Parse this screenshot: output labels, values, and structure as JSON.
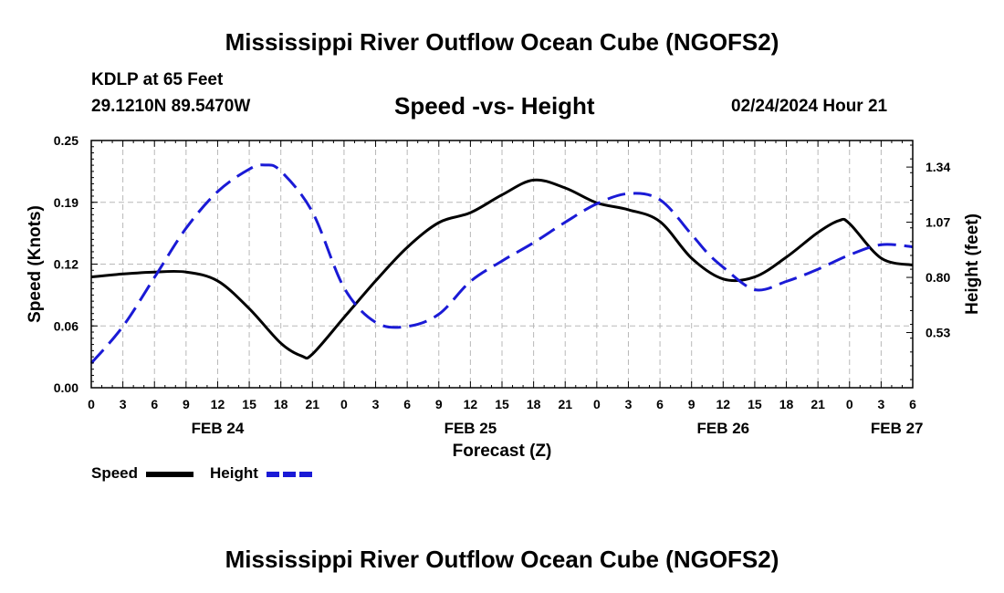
{
  "header": {
    "title": "Mississippi River Outflow Ocean Cube (NGOFS2)",
    "station": "KDLP at 65 Feet",
    "coords": "29.1210N  89.5470W",
    "subtitle": "Speed -vs- Height",
    "datetime": "02/24/2024 Hour 21"
  },
  "footer": {
    "title": "Mississippi River Outflow Ocean Cube (NGOFS2)"
  },
  "legend": {
    "speed_label": "Speed",
    "height_label": "Height"
  },
  "chart_data": {
    "type": "line",
    "title": "Speed -vs- Height",
    "xlabel": "Forecast (Z)",
    "ylabel": "Speed (Knots)",
    "y2label": "Height (feet)",
    "x_range_hours": [
      0,
      78
    ],
    "xtick_labels": [
      "0",
      "3",
      "6",
      "9",
      "12",
      "15",
      "18",
      "21",
      "0",
      "3",
      "6",
      "9",
      "12",
      "15",
      "18",
      "21",
      "0",
      "3",
      "6",
      "9",
      "12",
      "15",
      "18",
      "21",
      "0",
      "3",
      "6"
    ],
    "date_labels": [
      {
        "label": "FEB 24",
        "hour": 12
      },
      {
        "label": "FEB 25",
        "hour": 36
      },
      {
        "label": "FEB 26",
        "hour": 60
      },
      {
        "label": "FEB 27",
        "hour": 76.5
      }
    ],
    "ylim": [
      0,
      0.25
    ],
    "yticks": [
      "0.00",
      "0.06",
      "0.12",
      "0.19",
      "0.25"
    ],
    "y2lim": [
      0.26,
      1.47
    ],
    "y2ticks": [
      "0.53",
      "0.80",
      "1.07",
      "1.34"
    ],
    "grid": true,
    "colors": {
      "speed": "#000000",
      "height": "#1a1ad6",
      "grid": "#b8b8b8"
    },
    "series": [
      {
        "name": "Speed",
        "axis": "left",
        "style": "solid",
        "x": [
          0,
          3,
          6,
          9,
          12,
          15,
          18,
          20,
          21,
          24,
          27,
          30,
          33,
          36,
          39,
          42,
          45,
          48,
          51,
          54,
          57,
          60,
          63,
          66,
          69,
          71,
          72,
          75,
          78
        ],
        "values": [
          0.112,
          0.115,
          0.117,
          0.117,
          0.108,
          0.08,
          0.045,
          0.032,
          0.034,
          0.071,
          0.108,
          0.142,
          0.167,
          0.177,
          0.195,
          0.21,
          0.202,
          0.187,
          0.18,
          0.168,
          0.131,
          0.11,
          0.112,
          0.132,
          0.157,
          0.169,
          0.166,
          0.131,
          0.124
        ]
      },
      {
        "name": "Height",
        "axis": "right",
        "style": "dashed",
        "x": [
          0,
          3,
          6,
          9,
          12,
          15,
          16.5,
          18,
          21,
          24,
          27,
          30,
          33,
          36,
          39,
          42,
          45,
          48,
          51,
          54,
          57,
          58.5,
          60,
          63,
          66,
          69,
          72,
          75,
          78
        ],
        "values": [
          0.38,
          0.56,
          0.8,
          1.04,
          1.22,
          1.33,
          1.35,
          1.32,
          1.12,
          0.75,
          0.58,
          0.56,
          0.62,
          0.78,
          0.88,
          0.97,
          1.07,
          1.16,
          1.21,
          1.18,
          1.01,
          0.92,
          0.85,
          0.74,
          0.78,
          0.84,
          0.91,
          0.96,
          0.95
        ]
      }
    ]
  }
}
